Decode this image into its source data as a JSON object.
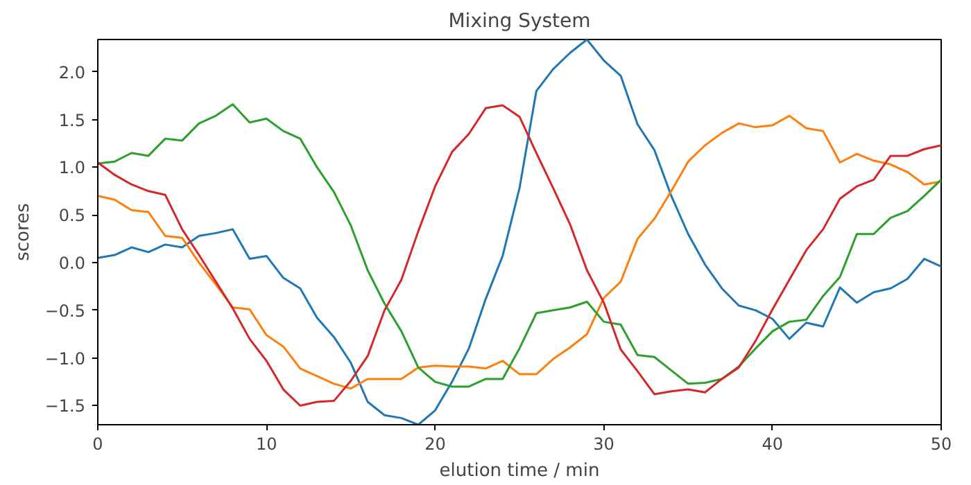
{
  "chart_data": {
    "type": "line",
    "title": "Mixing System",
    "xlabel": "elution time / min",
    "ylabel": "scores",
    "x": [
      0,
      1,
      2,
      3,
      4,
      5,
      6,
      7,
      8,
      9,
      10,
      11,
      12,
      13,
      14,
      15,
      16,
      17,
      18,
      19,
      20,
      21,
      22,
      23,
      24,
      25,
      26,
      27,
      28,
      29,
      30,
      31,
      32,
      33,
      34,
      35,
      36,
      37,
      38,
      39,
      40,
      41,
      42,
      43,
      44,
      45,
      46,
      47,
      48,
      49,
      50
    ],
    "series": [
      {
        "color": "#1f77b4",
        "values": [
          0.05,
          0.08,
          0.16,
          0.11,
          0.19,
          0.16,
          0.28,
          0.31,
          0.35,
          0.04,
          0.07,
          -0.16,
          -0.27,
          -0.58,
          -0.78,
          -1.05,
          -1.46,
          -1.6,
          -1.63,
          -1.7,
          -1.55,
          -1.25,
          -0.9,
          -0.38,
          0.07,
          0.78,
          1.8,
          2.03,
          2.2,
          2.34,
          2.12,
          1.96,
          1.45,
          1.18,
          0.7,
          0.3,
          -0.02,
          -0.27,
          -0.45,
          -0.5,
          -0.59,
          -0.8,
          -0.63,
          -0.67,
          -0.26,
          -0.42,
          -0.31,
          -0.27,
          -0.17,
          0.04,
          -0.04
        ]
      },
      {
        "color": "#ff7f0e",
        "values": [
          0.7,
          0.66,
          0.55,
          0.53,
          0.28,
          0.26,
          0.0,
          -0.23,
          -0.47,
          -0.49,
          -0.76,
          -0.88,
          -1.11,
          -1.19,
          -1.27,
          -1.32,
          -1.22,
          -1.22,
          -1.22,
          -1.1,
          -1.08,
          -1.09,
          -1.09,
          -1.11,
          -1.03,
          -1.17,
          -1.17,
          -1.01,
          -0.89,
          -0.75,
          -0.37,
          -0.2,
          0.25,
          0.46,
          0.75,
          1.06,
          1.23,
          1.36,
          1.46,
          1.42,
          1.44,
          1.54,
          1.41,
          1.38,
          1.05,
          1.14,
          1.07,
          1.03,
          0.95,
          0.82,
          0.85
        ]
      },
      {
        "color": "#2ca02c",
        "values": [
          1.04,
          1.06,
          1.15,
          1.12,
          1.3,
          1.28,
          1.46,
          1.54,
          1.66,
          1.47,
          1.51,
          1.38,
          1.3,
          1.0,
          0.74,
          0.39,
          -0.08,
          -0.43,
          -0.72,
          -1.1,
          -1.25,
          -1.3,
          -1.3,
          -1.22,
          -1.22,
          -0.9,
          -0.53,
          -0.5,
          -0.47,
          -0.41,
          -0.62,
          -0.65,
          -0.97,
          -0.99,
          -1.13,
          -1.27,
          -1.26,
          -1.22,
          -1.09,
          -0.9,
          -0.72,
          -0.62,
          -0.6,
          -0.35,
          -0.15,
          0.3,
          0.3,
          0.47,
          0.54,
          0.7,
          0.87
        ]
      },
      {
        "color": "#d62728",
        "values": [
          1.05,
          0.92,
          0.82,
          0.75,
          0.71,
          0.35,
          0.08,
          -0.2,
          -0.48,
          -0.8,
          -1.03,
          -1.33,
          -1.5,
          -1.46,
          -1.45,
          -1.24,
          -0.98,
          -0.5,
          -0.18,
          0.33,
          0.8,
          1.16,
          1.35,
          1.62,
          1.65,
          1.53,
          1.15,
          0.78,
          0.4,
          -0.08,
          -0.42,
          -0.91,
          -1.14,
          -1.38,
          -1.35,
          -1.33,
          -1.36,
          -1.22,
          -1.1,
          -0.82,
          -0.49,
          -0.18,
          0.13,
          0.35,
          0.67,
          0.8,
          0.87,
          1.12,
          1.12,
          1.19,
          1.23
        ]
      }
    ],
    "xlim": [
      0,
      50
    ],
    "xticks": [
      0,
      10,
      20,
      30,
      40,
      50
    ],
    "ylim": [
      -1.7,
      2.34
    ],
    "yticks": [
      {
        "value": -1.5,
        "label": "−1.5"
      },
      {
        "value": -1.0,
        "label": "−1.0"
      },
      {
        "value": -0.5,
        "label": "−0.5"
      },
      {
        "value": 0,
        "label": "0.0"
      },
      {
        "value": 0.5,
        "label": "0.5"
      },
      {
        "value": 1.0,
        "label": "1.0"
      },
      {
        "value": 1.5,
        "label": "1.5"
      },
      {
        "value": 2.0,
        "label": "2.0"
      }
    ],
    "grid": false
  }
}
